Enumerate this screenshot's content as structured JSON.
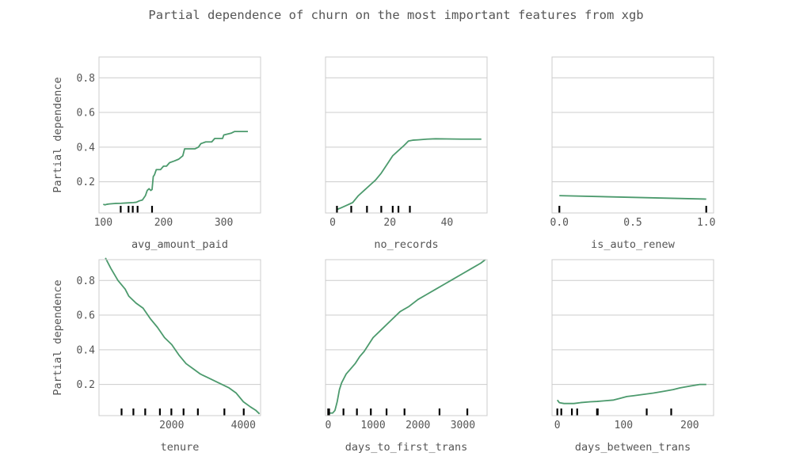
{
  "chart_data": {
    "type": "line",
    "title": "Partial dependence of churn on the most important features from xgb",
    "ylabel": "Partial dependence",
    "ylim": [
      0.02,
      0.92
    ],
    "yticks": [
      0.2,
      0.4,
      0.6,
      0.8
    ],
    "grid": "horizontal",
    "line_color": "#4c9a6d",
    "panels": [
      {
        "xlabel": "avg_amount_paid",
        "xlim": [
          93,
          361
        ],
        "xticks": [
          100,
          200,
          300
        ],
        "deciles": [
          129,
          142,
          149,
          157,
          181
        ],
        "points": [
          [
            100,
            0.07
          ],
          [
            103,
            0.067
          ],
          [
            106,
            0.07
          ],
          [
            110,
            0.072
          ],
          [
            120,
            0.075
          ],
          [
            130,
            0.076
          ],
          [
            140,
            0.078
          ],
          [
            150,
            0.08
          ],
          [
            155,
            0.082
          ],
          [
            160,
            0.09
          ],
          [
            165,
            0.095
          ],
          [
            170,
            0.12
          ],
          [
            173,
            0.15
          ],
          [
            176,
            0.16
          ],
          [
            179,
            0.15
          ],
          [
            181,
            0.155
          ],
          [
            183,
            0.23
          ],
          [
            185,
            0.24
          ],
          [
            188,
            0.27
          ],
          [
            195,
            0.27
          ],
          [
            200,
            0.29
          ],
          [
            205,
            0.29
          ],
          [
            210,
            0.31
          ],
          [
            218,
            0.32
          ],
          [
            225,
            0.33
          ],
          [
            232,
            0.35
          ],
          [
            235,
            0.39
          ],
          [
            245,
            0.39
          ],
          [
            252,
            0.39
          ],
          [
            258,
            0.4
          ],
          [
            262,
            0.42
          ],
          [
            270,
            0.43
          ],
          [
            280,
            0.43
          ],
          [
            285,
            0.45
          ],
          [
            298,
            0.45
          ],
          [
            300,
            0.47
          ],
          [
            312,
            0.48
          ],
          [
            318,
            0.49
          ],
          [
            330,
            0.49
          ],
          [
            340,
            0.49
          ]
        ]
      },
      {
        "xlabel": "no_records",
        "xlim": [
          -2.5,
          54
        ],
        "xticks": [
          0,
          20,
          40
        ],
        "deciles": [
          1.5,
          6.5,
          12,
          17,
          21,
          23,
          27
        ],
        "points": [
          [
            1.5,
            0.04
          ],
          [
            3,
            0.05
          ],
          [
            5,
            0.065
          ],
          [
            7,
            0.08
          ],
          [
            9,
            0.12
          ],
          [
            11,
            0.15
          ],
          [
            13,
            0.18
          ],
          [
            15,
            0.21
          ],
          [
            17,
            0.25
          ],
          [
            19,
            0.3
          ],
          [
            21,
            0.35
          ],
          [
            23,
            0.38
          ],
          [
            25,
            0.41
          ],
          [
            26.5,
            0.435
          ],
          [
            28,
            0.44
          ],
          [
            30,
            0.442
          ],
          [
            33,
            0.446
          ],
          [
            36,
            0.448
          ],
          [
            40,
            0.447
          ],
          [
            45,
            0.446
          ],
          [
            50,
            0.446
          ],
          [
            52,
            0.446
          ]
        ]
      },
      {
        "xlabel": "is_auto_renew",
        "xlim": [
          -0.05,
          1.05
        ],
        "xticks": [
          0.0,
          0.5,
          1.0
        ],
        "tick_format": "1dp",
        "deciles": [
          0,
          1
        ],
        "points": [
          [
            0,
            0.12
          ],
          [
            1,
            0.1
          ]
        ]
      },
      {
        "xlabel": "tenure",
        "xlim": [
          -30,
          4480
        ],
        "xticks": [
          2000,
          4000
        ],
        "deciles": [
          600,
          930,
          1260,
          1670,
          1990,
          2330,
          2730,
          3470,
          4010
        ],
        "points": [
          [
            150,
            0.93
          ],
          [
            300,
            0.87
          ],
          [
            500,
            0.8
          ],
          [
            700,
            0.75
          ],
          [
            800,
            0.71
          ],
          [
            1000,
            0.67
          ],
          [
            1200,
            0.64
          ],
          [
            1400,
            0.58
          ],
          [
            1600,
            0.53
          ],
          [
            1800,
            0.47
          ],
          [
            2000,
            0.43
          ],
          [
            2200,
            0.37
          ],
          [
            2400,
            0.32
          ],
          [
            2600,
            0.29
          ],
          [
            2800,
            0.26
          ],
          [
            3000,
            0.24
          ],
          [
            3200,
            0.22
          ],
          [
            3400,
            0.2
          ],
          [
            3600,
            0.18
          ],
          [
            3800,
            0.15
          ],
          [
            4000,
            0.1
          ],
          [
            4200,
            0.07
          ],
          [
            4350,
            0.05
          ],
          [
            4450,
            0.03
          ]
        ]
      },
      {
        "xlabel": "days_to_first_trans",
        "xlim": [
          -60,
          3540
        ],
        "xticks": [
          0,
          1000,
          2000,
          3000
        ],
        "deciles": [
          0,
          20,
          340,
          640,
          950,
          1300,
          1700,
          2480,
          3100
        ],
        "points": [
          [
            0,
            0.035
          ],
          [
            100,
            0.035
          ],
          [
            150,
            0.05
          ],
          [
            200,
            0.1
          ],
          [
            250,
            0.17
          ],
          [
            300,
            0.21
          ],
          [
            400,
            0.26
          ],
          [
            500,
            0.29
          ],
          [
            600,
            0.32
          ],
          [
            700,
            0.36
          ],
          [
            800,
            0.39
          ],
          [
            900,
            0.43
          ],
          [
            1000,
            0.47
          ],
          [
            1200,
            0.52
          ],
          [
            1400,
            0.57
          ],
          [
            1600,
            0.62
          ],
          [
            1800,
            0.65
          ],
          [
            2000,
            0.69
          ],
          [
            2200,
            0.72
          ],
          [
            2400,
            0.75
          ],
          [
            2600,
            0.78
          ],
          [
            2800,
            0.81
          ],
          [
            3000,
            0.84
          ],
          [
            3200,
            0.87
          ],
          [
            3400,
            0.9
          ],
          [
            3500,
            0.92
          ]
        ]
      },
      {
        "xlabel": "days_between_trans",
        "xlim": [
          -8,
          236
        ],
        "xticks": [
          0,
          100,
          200
        ],
        "deciles": [
          0,
          6,
          22,
          30,
          60,
          61,
          135,
          172
        ],
        "points": [
          [
            0,
            0.11
          ],
          [
            3,
            0.095
          ],
          [
            10,
            0.09
          ],
          [
            25,
            0.09
          ],
          [
            35,
            0.095
          ],
          [
            50,
            0.1
          ],
          [
            60,
            0.102
          ],
          [
            70,
            0.105
          ],
          [
            85,
            0.11
          ],
          [
            95,
            0.12
          ],
          [
            105,
            0.13
          ],
          [
            115,
            0.135
          ],
          [
            125,
            0.14
          ],
          [
            135,
            0.145
          ],
          [
            145,
            0.15
          ],
          [
            160,
            0.16
          ],
          [
            175,
            0.17
          ],
          [
            185,
            0.18
          ],
          [
            200,
            0.19
          ],
          [
            215,
            0.2
          ],
          [
            225,
            0.2
          ]
        ]
      }
    ]
  }
}
